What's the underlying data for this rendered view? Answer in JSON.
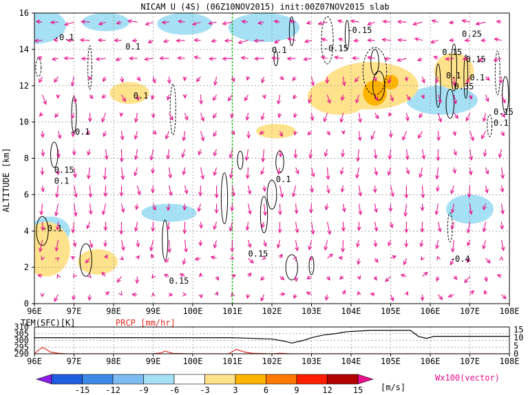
{
  "title": "NICAM U (4S) (06Z10NOV2015) init:00Z07NOV2015 slab",
  "colors": {
    "vector": "#e8108c",
    "marker_line": "#22bb22",
    "temperature": "#000000",
    "precip": "#e0281e"
  },
  "chart_data": [
    {
      "type": "heatmap",
      "title": "NICAM U (4S) (06Z10NOV2015) init:00Z07NOV2015 slab",
      "ylabel": "ALTITUDE [km]",
      "xlabel": "",
      "x_ticks": [
        "96E",
        "97E",
        "98E",
        "99E",
        "100E",
        "101E",
        "102E",
        "103E",
        "104E",
        "105E",
        "106E",
        "107E",
        "108E"
      ],
      "y_ticks": [
        "0",
        "2",
        "4",
        "6",
        "8",
        "10",
        "12",
        "14",
        "16"
      ],
      "xlim": [
        96,
        108
      ],
      "ylim": [
        0,
        16
      ],
      "grid": true,
      "marker_line_x": 101,
      "contour_labels": [
        "-0.1",
        "0.1",
        "-0.15",
        "-0.15",
        "0.25",
        "0.15",
        "0.15",
        "0.1",
        "0.35",
        "0.1",
        "0.15",
        "0.1",
        "-0.1",
        "-0.1",
        "0.15",
        "0.1",
        "0.1",
        "0.1",
        "0.15",
        "0.15",
        "-0.4",
        "0.1"
      ],
      "shading_regions": [
        {
          "level": -6,
          "x": 96.0,
          "y": 15.3,
          "rx": 0.8,
          "ry": 1.0
        },
        {
          "level": -6,
          "x": 97.8,
          "y": 15.5,
          "rx": 0.6,
          "ry": 0.5
        },
        {
          "level": -6,
          "x": 99.8,
          "y": 15.4,
          "rx": 0.7,
          "ry": 0.6
        },
        {
          "level": -6,
          "x": 101.8,
          "y": 15.2,
          "rx": 0.9,
          "ry": 0.8
        },
        {
          "level": -6,
          "x": 96.4,
          "y": 4.0,
          "rx": 0.5,
          "ry": 0.8
        },
        {
          "level": -6,
          "x": 99.4,
          "y": 5.0,
          "rx": 0.7,
          "ry": 0.5
        },
        {
          "level": -6,
          "x": 106.3,
          "y": 11.2,
          "rx": 0.9,
          "ry": 0.8
        },
        {
          "level": -6,
          "x": 107.0,
          "y": 5.2,
          "rx": 0.6,
          "ry": 0.8
        },
        {
          "level": 3,
          "x": 104.5,
          "y": 12.0,
          "rx": 1.2,
          "ry": 1.3
        },
        {
          "level": 3,
          "x": 103.7,
          "y": 11.4,
          "rx": 0.8,
          "ry": 1.0
        },
        {
          "level": 3,
          "x": 98.4,
          "y": 11.6,
          "rx": 0.5,
          "ry": 0.6
        },
        {
          "level": 3,
          "x": 96.3,
          "y": 3.0,
          "rx": 0.6,
          "ry": 1.5
        },
        {
          "level": 3,
          "x": 97.6,
          "y": 2.3,
          "rx": 0.5,
          "ry": 0.7
        },
        {
          "level": 3,
          "x": 102.1,
          "y": 9.5,
          "rx": 0.5,
          "ry": 0.4
        },
        {
          "level": 3,
          "x": 106.6,
          "y": 12.8,
          "rx": 0.5,
          "ry": 1.0
        },
        {
          "level": 6,
          "x": 104.6,
          "y": 11.6,
          "rx": 0.3,
          "ry": 0.7
        },
        {
          "level": 6,
          "x": 105.0,
          "y": 12.2,
          "rx": 0.2,
          "ry": 0.4
        }
      ]
    },
    {
      "type": "line",
      "title": "",
      "left_label": "TEM(SFC)[K]",
      "right_label": "PRCP [mm/hr]",
      "left_ticks": [
        "310",
        "305",
        "300",
        "295",
        "290"
      ],
      "right_ticks": [
        "15",
        "10",
        "5",
        "0"
      ],
      "x_ticks": [
        "96E",
        "97E",
        "98E",
        "99E",
        "100E",
        "101E",
        "102E",
        "103E",
        "104E",
        "105E",
        "106E",
        "107E",
        "108E"
      ],
      "xlim": [
        96,
        108
      ],
      "ylim_left": [
        290,
        310
      ],
      "ylim_right": [
        0,
        15
      ],
      "series": [
        {
          "name": "TEM(SFC)[K]",
          "x": [
            96,
            96.5,
            97,
            97.5,
            98,
            98.5,
            99,
            99.5,
            100,
            100.5,
            101,
            101.5,
            102,
            102.3,
            102.5,
            102.8,
            103,
            103.3,
            103.6,
            103.9,
            104.2,
            104.5,
            105,
            105.5,
            105.7,
            105.9,
            106.1,
            106.5,
            107,
            107.5,
            108
          ],
          "y": [
            302,
            302,
            302,
            302,
            302,
            302,
            302,
            302,
            302,
            302,
            302,
            301.5,
            301,
            299.5,
            298,
            300,
            302,
            304,
            305,
            306.5,
            307,
            307.5,
            307.5,
            307.5,
            303,
            301.5,
            303,
            303,
            303,
            303,
            303
          ]
        },
        {
          "name": "PRCP [mm/hr]",
          "x": [
            96,
            96.1,
            96.2,
            96.3,
            96.4,
            96.6,
            96.8,
            97,
            98,
            99,
            99.2,
            99.3,
            99.5,
            100,
            100.9,
            101,
            101.1,
            101.3,
            101.5,
            102,
            102.2,
            102.5,
            103,
            104,
            105,
            106,
            107,
            108
          ],
          "y": [
            0,
            2,
            3.5,
            2.5,
            1,
            0.3,
            0,
            0,
            0,
            0,
            0.5,
            1.5,
            0.2,
            0,
            0,
            1.2,
            2.5,
            1,
            0.3,
            0,
            0.3,
            0,
            0,
            0,
            0,
            0,
            0,
            0
          ]
        }
      ]
    },
    {
      "type": "colorbar",
      "values": [
        "-15",
        "-12",
        "-9",
        "-6",
        "-3",
        "3",
        "6",
        "9",
        "12",
        "15"
      ],
      "colors": [
        "#8a1de8",
        "#1f5de0",
        "#3c8ae6",
        "#7dbbf0",
        "#a6e0f5",
        "#ffffff",
        "#ffe28c",
        "#ffb400",
        "#ff7800",
        "#ff1e00",
        "#b40000",
        "#e8108c"
      ],
      "units": "[m/s]",
      "vector_label": "Wx100(vector)"
    }
  ]
}
